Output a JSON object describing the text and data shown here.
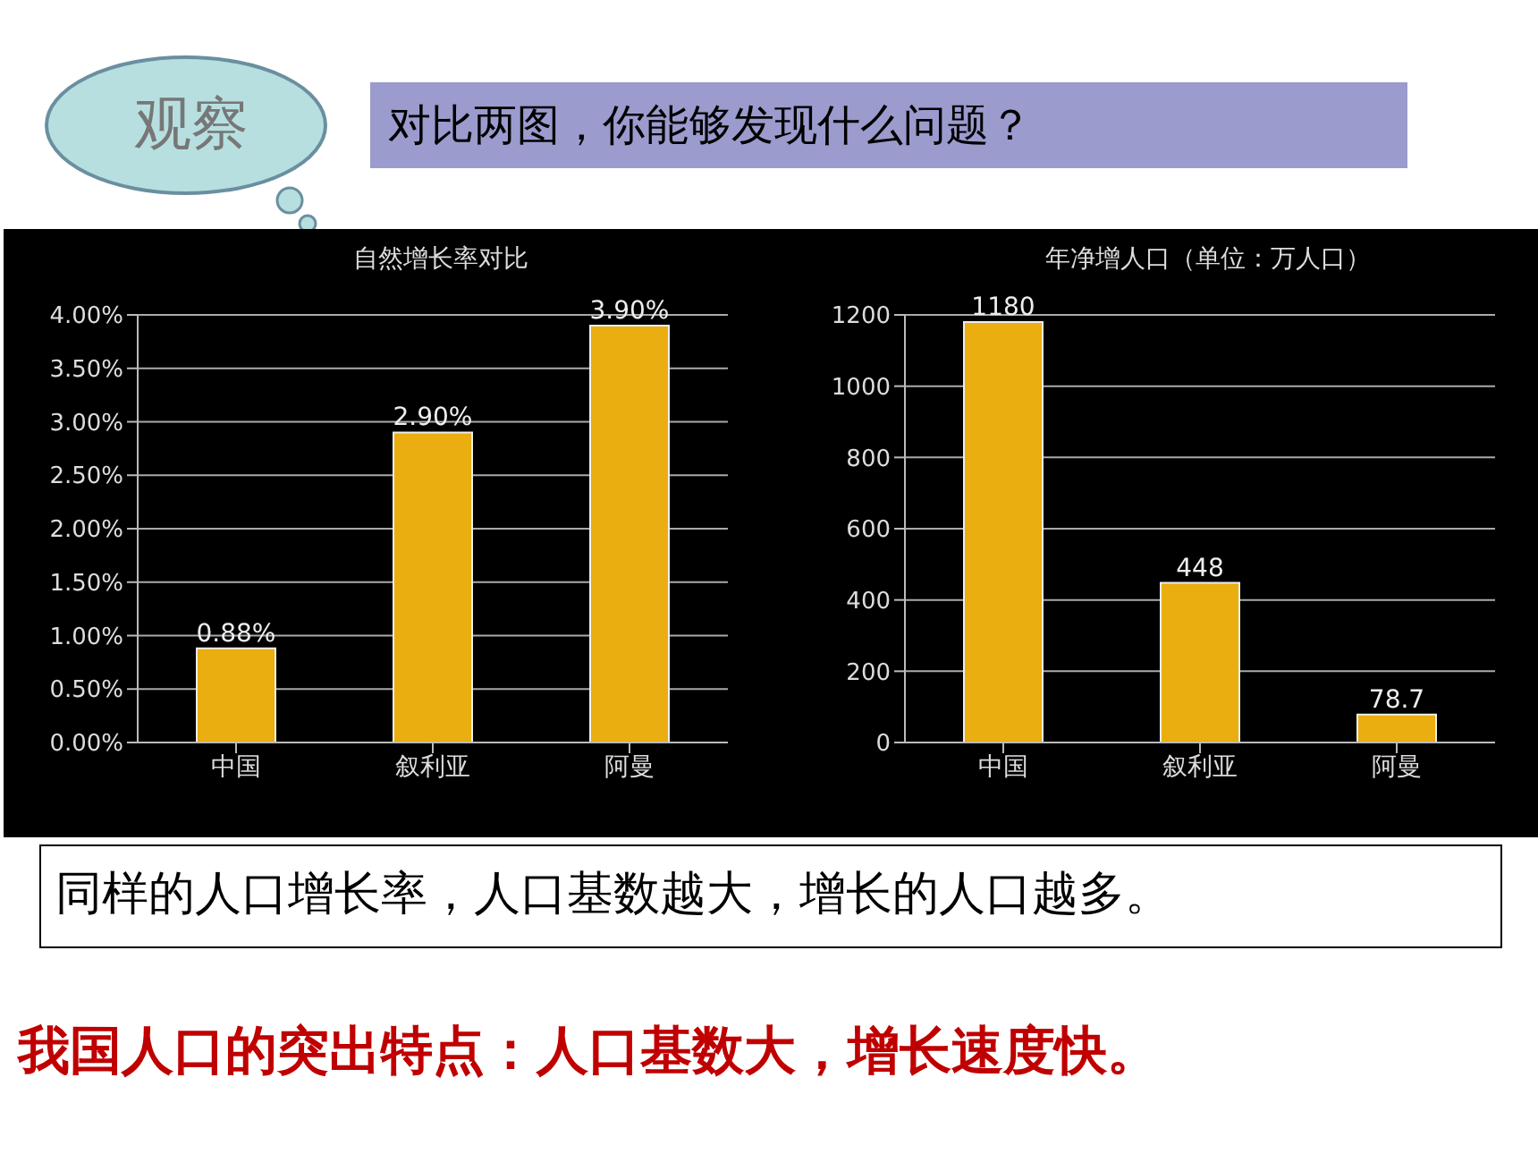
{
  "chart_data": [
    {
      "type": "bar",
      "title": "自然增长率对比",
      "categories": [
        "中国",
        "叙利亚",
        "阿曼"
      ],
      "values": [
        0.88,
        2.9,
        3.9
      ],
      "value_labels": [
        "0.88%",
        "2.90%",
        "3.90%"
      ],
      "color": "#eaae10",
      "ylim": [
        0,
        4
      ],
      "yticks": [
        {
          "value": 0,
          "label": "0.00%"
        },
        {
          "value": 0.5,
          "label": "0.50%"
        },
        {
          "value": 1,
          "label": "1.00%"
        },
        {
          "value": 1.5,
          "label": "1.50%"
        },
        {
          "value": 2,
          "label": "2.00%"
        },
        {
          "value": 2.5,
          "label": "2.50%"
        },
        {
          "value": 3,
          "label": "3.00%"
        },
        {
          "value": 3.5,
          "label": "3.50%"
        },
        {
          "value": 4,
          "label": "4.00%"
        }
      ],
      "grid": "y",
      "annotations": [
        "观察",
        "对比两图，你能够发现什么问题？"
      ]
    },
    {
      "type": "bar",
      "title": "年净增人口（单位：万人口）",
      "categories": [
        "中国",
        "叙利亚",
        "阿曼"
      ],
      "values": [
        1180,
        448,
        78.7
      ],
      "data_labels": true,
      "color": "#eaae10",
      "ylim": [
        0,
        1200
      ],
      "yticks": [
        0,
        200,
        400,
        600,
        800,
        1000,
        1200
      ],
      "grid": "y",
      "annotations": [
        "同样的人口增长率，人口基数越大，增长的人口越多。",
        "我国人口的突出特点：人口基数大，增长速度快。"
      ]
    }
  ]
}
